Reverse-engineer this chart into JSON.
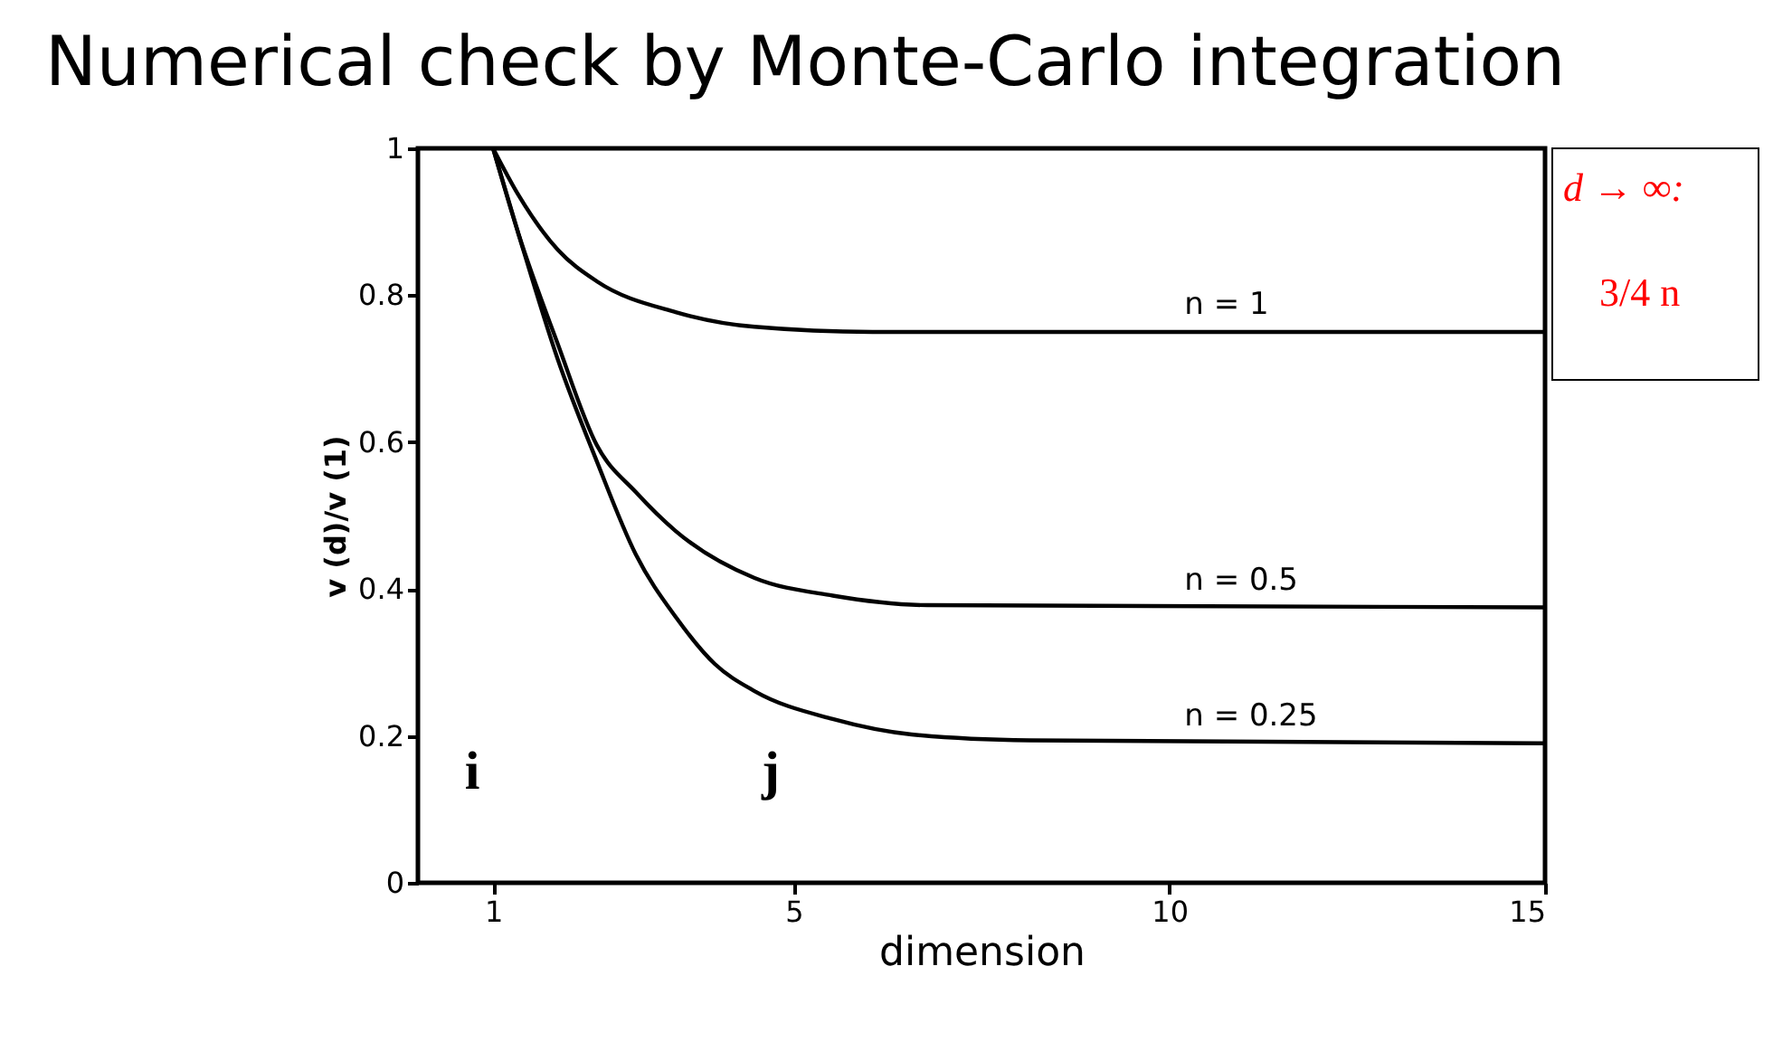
{
  "chart_data": {
    "type": "line",
    "title": "Numerical check by Monte-Carlo integration",
    "xlabel": "dimension",
    "ylabel": "v (d)/v (1)",
    "xlim": [
      0,
      15
    ],
    "ylim": [
      0,
      1
    ],
    "xticks": [
      1,
      5,
      10,
      15
    ],
    "yticks": [
      0,
      0.2,
      0.4,
      0.6,
      0.8,
      1
    ],
    "grid": false,
    "marker": "none",
    "line_style": "solid",
    "series": [
      {
        "name": "n = 1",
        "color": "#000000",
        "x": [
          1,
          1.34,
          1.86,
          2.38,
          3.43,
          4.48,
          6.05,
          15
        ],
        "values": [
          1,
          0.936,
          0.862,
          0.819,
          0.777,
          0.757,
          0.75,
          0.75
        ]
      },
      {
        "name": "n = 0.5",
        "color": "#000000",
        "x": [
          1,
          1.34,
          1.86,
          2.38,
          2.9,
          3.43,
          4.48,
          5.52,
          6.78,
          15
        ],
        "values": [
          1,
          0.883,
          0.734,
          0.596,
          0.532,
          0.479,
          0.415,
          0.391,
          0.378,
          0.375
        ]
      },
      {
        "name": "n = 0.25",
        "color": "#000000",
        "x": [
          1,
          1.34,
          1.86,
          2.38,
          2.9,
          3.43,
          3.95,
          4.48,
          5.52,
          6.57,
          8.14,
          15
        ],
        "values": [
          1,
          0.883,
          0.713,
          0.574,
          0.447,
          0.362,
          0.298,
          0.261,
          0.223,
          0.202,
          0.194,
          0.19
        ]
      }
    ],
    "annotations": [
      "d → ∞:",
      "3/4 n",
      "i",
      "j"
    ]
  }
}
